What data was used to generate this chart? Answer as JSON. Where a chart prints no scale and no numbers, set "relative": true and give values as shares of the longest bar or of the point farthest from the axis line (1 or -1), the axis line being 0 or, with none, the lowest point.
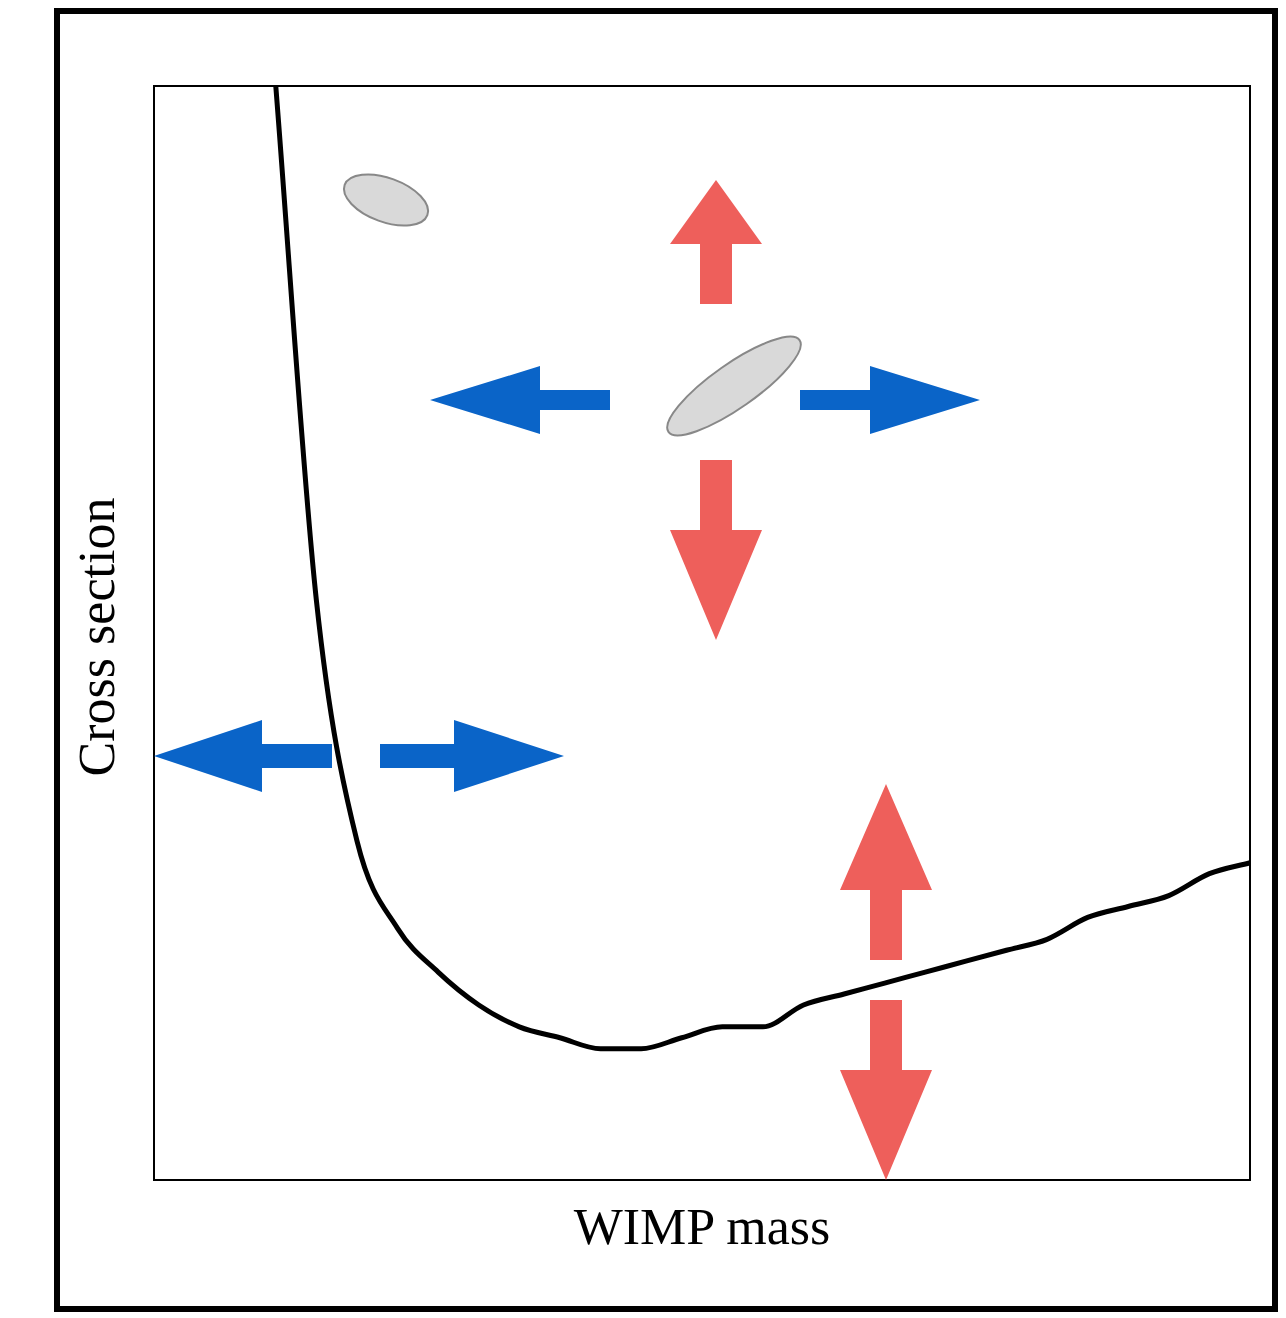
{
  "chart_data": {
    "type": "line",
    "relative": true,
    "xlabel": "WIMP mass",
    "ylabel": "Cross section",
    "legend": false,
    "marker": "none",
    "line_style": "solid",
    "categories": [
      null,
      null,
      null,
      null,
      null,
      null,
      null,
      null,
      null,
      null,
      null,
      null,
      null,
      null,
      null,
      null,
      null,
      null,
      null,
      null,
      null,
      null,
      null,
      null,
      null,
      null,
      null,
      null
    ],
    "series": [
      {
        "color": "#000000",
        "values": [
          null,
          null,
          null,
          1.0,
          0.53,
          0.31,
          0.23,
          0.19,
          0.16,
          0.14,
          0.13,
          0.12,
          0.12,
          0.13,
          0.14,
          0.14,
          0.16,
          0.17,
          0.18,
          0.19,
          0.2,
          0.21,
          0.22,
          0.24,
          0.25,
          0.26,
          0.28,
          0.29
        ]
      }
    ]
  }
}
